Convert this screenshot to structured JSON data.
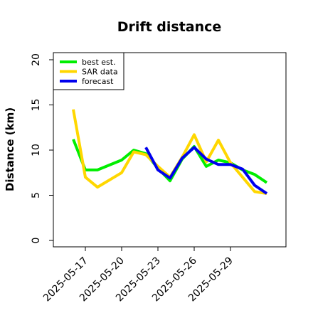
{
  "chart_data": {
    "type": "line",
    "title": "Drift distance",
    "xlabel": "",
    "ylabel": "Distance (km)",
    "ylim": [
      0,
      20
    ],
    "yticks": [
      0,
      5,
      10,
      15,
      20
    ],
    "xlim": [
      "2025-05-15",
      "2025-06-02"
    ],
    "xticks": [
      "2025-05-17",
      "2025-05-20",
      "2025-05-23",
      "2025-05-26",
      "2025-05-29"
    ],
    "grid": false,
    "legend_position": "top-left",
    "series": [
      {
        "name": "best est.",
        "color": "#00ee00",
        "x": [
          "2025-05-16",
          "2025-05-17",
          "2025-05-18",
          "2025-05-20",
          "2025-05-21",
          "2025-05-22",
          "2025-05-23",
          "2025-05-24",
          "2025-05-25",
          "2025-05-26",
          "2025-05-27",
          "2025-05-28",
          "2025-05-29",
          "2025-05-30",
          "2025-05-31",
          "2025-06-01"
        ],
        "values": [
          11.2,
          7.8,
          7.8,
          8.9,
          10.0,
          9.6,
          8.0,
          6.6,
          9.0,
          10.4,
          8.2,
          8.9,
          8.6,
          7.8,
          7.3,
          6.4
        ]
      },
      {
        "name": "SAR data",
        "color": "#ffd700",
        "x": [
          "2025-05-16",
          "2025-05-17",
          "2025-05-18",
          "2025-05-20",
          "2025-05-21",
          "2025-05-22",
          "2025-05-23",
          "2025-05-24",
          "2025-05-25",
          "2025-05-26",
          "2025-05-27",
          "2025-05-28",
          "2025-05-29",
          "2025-05-30",
          "2025-05-31",
          "2025-06-01"
        ],
        "values": [
          14.5,
          7.0,
          5.9,
          7.5,
          9.8,
          9.5,
          8.2,
          7.0,
          9.2,
          11.7,
          8.7,
          11.1,
          8.6,
          7.0,
          5.4,
          5.2
        ]
      },
      {
        "name": "forecast",
        "color": "#0000ee",
        "x": [
          "2025-05-22",
          "2025-05-23",
          "2025-05-24",
          "2025-05-25",
          "2025-05-26",
          "2025-05-27",
          "2025-05-28",
          "2025-05-29",
          "2025-05-30",
          "2025-05-31",
          "2025-06-01"
        ],
        "values": [
          10.3,
          7.8,
          6.9,
          9.1,
          10.3,
          9.0,
          8.4,
          8.4,
          7.9,
          6.1,
          5.2
        ]
      }
    ]
  }
}
